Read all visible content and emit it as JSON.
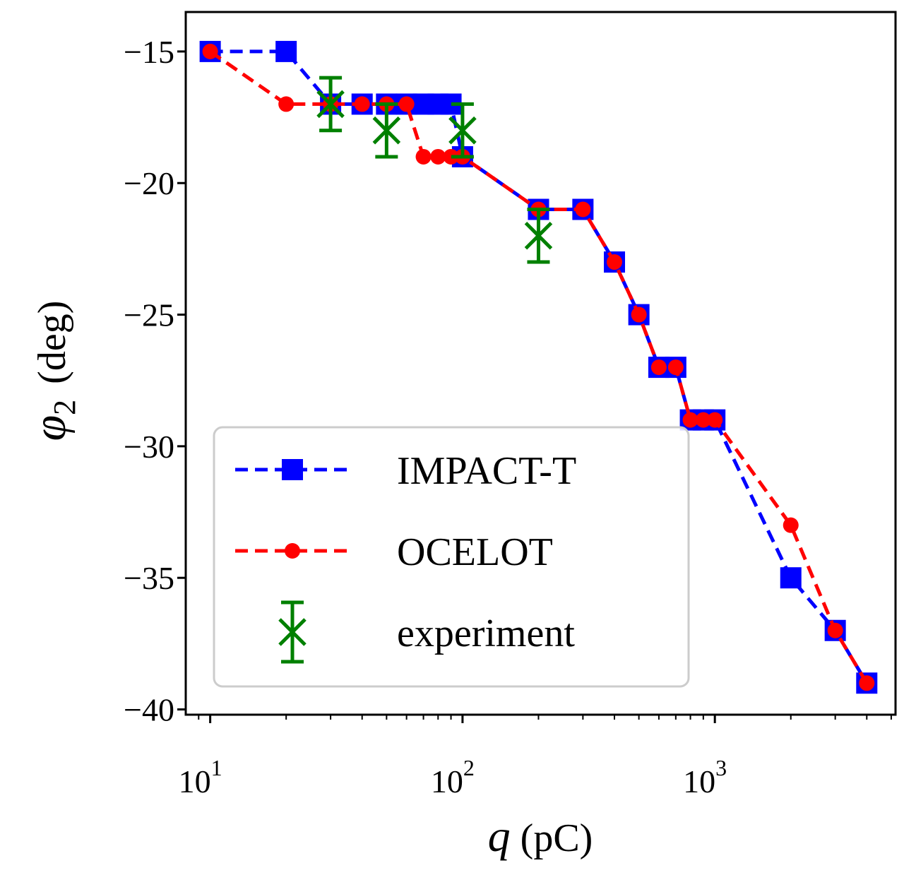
{
  "chart_data": {
    "type": "line",
    "xscale": "log",
    "xlim": [
      8,
      5200
    ],
    "ylim": [
      -40.2,
      -13.5
    ],
    "xlabel": {
      "var": "q",
      "unit": " (pC)"
    },
    "ylabel": {
      "var": "φ",
      "sub": "2",
      "unit": "(deg)"
    },
    "x_ticks": [
      {
        "value": 10,
        "base": "10",
        "exp": "1"
      },
      {
        "value": 100,
        "base": "10",
        "exp": "2"
      },
      {
        "value": 1000,
        "base": "10",
        "exp": "3"
      }
    ],
    "y_ticks": [
      {
        "value": -15,
        "label": "−15"
      },
      {
        "value": -20,
        "label": "−20"
      },
      {
        "value": -25,
        "label": "−25"
      },
      {
        "value": -30,
        "label": "−30"
      },
      {
        "value": -35,
        "label": "−35"
      },
      {
        "value": -40,
        "label": "−40"
      }
    ],
    "series": [
      {
        "name": "IMPACT-T",
        "color": "#0000ff",
        "marker": "square",
        "linestyle": "dashed",
        "x": [
          10,
          20,
          30,
          40,
          50,
          60,
          70,
          80,
          90,
          100,
          200,
          300,
          400,
          500,
          600,
          700,
          800,
          900,
          1000,
          2000,
          3000,
          4000
        ],
        "y": [
          -15,
          -15,
          -17,
          -17,
          -17,
          -17,
          -17,
          -17,
          -17,
          -19,
          -21,
          -21,
          -23,
          -25,
          -27,
          -27,
          -29,
          -29,
          -29,
          -35,
          -37,
          -39
        ]
      },
      {
        "name": "OCELOT",
        "color": "#ff0000",
        "marker": "circle",
        "linestyle": "dashed",
        "x": [
          10,
          20,
          30,
          40,
          50,
          60,
          70,
          80,
          90,
          100,
          200,
          300,
          400,
          500,
          600,
          700,
          800,
          900,
          1000,
          2000,
          3000,
          4000
        ],
        "y": [
          -15,
          -17,
          -17,
          -17,
          -17,
          -17,
          -19,
          -19,
          -19,
          -19,
          -21,
          -21,
          -23,
          -25,
          -27,
          -27,
          -29,
          -29,
          -29,
          -33,
          -37,
          -39
        ]
      },
      {
        "name": "experiment",
        "color": "#008000",
        "marker": "x",
        "linestyle": "none",
        "x": [
          30,
          50,
          100,
          200
        ],
        "y": [
          -17,
          -18,
          -18,
          -22
        ],
        "yerr": [
          1,
          1,
          1,
          1
        ]
      }
    ],
    "legend": {
      "position": "lower-left"
    }
  }
}
